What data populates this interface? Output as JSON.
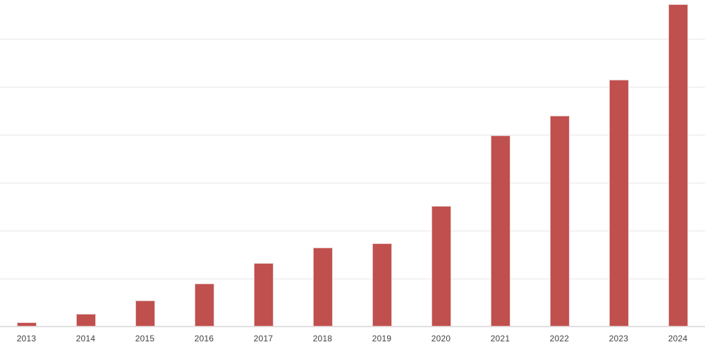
{
  "chart_data": {
    "type": "bar",
    "title": "",
    "xlabel": "",
    "ylabel": "",
    "categories": [
      "2013",
      "2014",
      "2015",
      "2016",
      "2017",
      "2018",
      "2019",
      "2020",
      "2021",
      "2022",
      "2023",
      "2024"
    ],
    "values": [
      0.09,
      0.27,
      0.54,
      0.89,
      1.33,
      1.65,
      1.74,
      2.51,
      3.99,
      4.4,
      5.15,
      6.72
    ],
    "ylim": [
      0,
      6.8
    ],
    "y_gridline_step": 1,
    "y_tick_labels_visible": false,
    "grid": "horizontal",
    "legend_position": "none",
    "value_note": "y-axis unlabeled in image; values estimated in gridline units (1 unit = one gridline spacing)",
    "colors": {
      "bar_fill": "#c0504d",
      "bar_border": "#e9cbca",
      "gridline": "#e7e7e7",
      "axis_line": "#e0e0e0",
      "label_text": "#3f3f3f",
      "background": "#ffffff"
    }
  }
}
